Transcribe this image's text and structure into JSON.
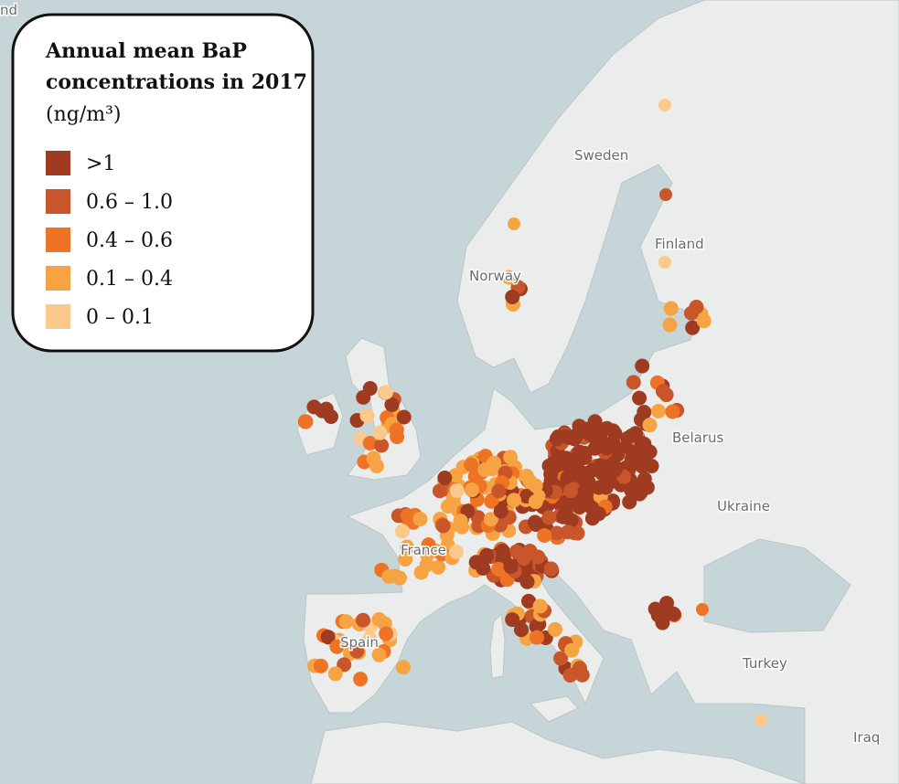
{
  "legend": {
    "title": [
      "Annual mean BaP",
      "concentrations in 2017"
    ],
    "unit": "(ng/m³)",
    "items": [
      {
        "label": ">1",
        "color": "#9e3b20"
      },
      {
        "label": "0.6 – 1.0",
        "color": "#c9552a"
      },
      {
        "label": "0.4 – 0.6",
        "color": "#ee7324"
      },
      {
        "label": "0.1 – 0.4",
        "color": "#f6a443"
      },
      {
        "label": "0 – 0.1",
        "color": "#fbc98c"
      }
    ]
  },
  "map": {
    "labels": [
      "nd",
      "Sweden",
      "Finland",
      "Norway",
      "Belarus",
      "Ukraine",
      "France",
      "Spain",
      "Turkey",
      "Iraq"
    ]
  }
}
